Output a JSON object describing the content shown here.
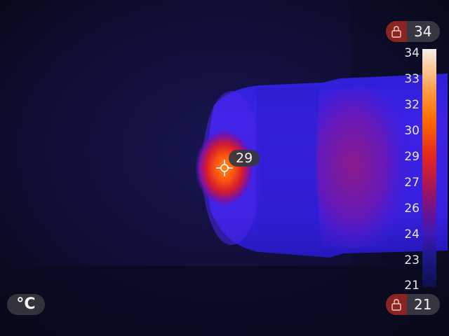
{
  "thermal": {
    "spot_temperature": "29",
    "unit_label": "°C",
    "max_lock_value": "34",
    "min_lock_value": "21",
    "scale_labels": [
      "34",
      "33",
      "32",
      "30",
      "29",
      "27",
      "26",
      "24",
      "23",
      "21"
    ]
  },
  "icons": {
    "max_lock": "lock-icon",
    "min_lock": "lock-icon",
    "spot": "crosshair-icon"
  }
}
